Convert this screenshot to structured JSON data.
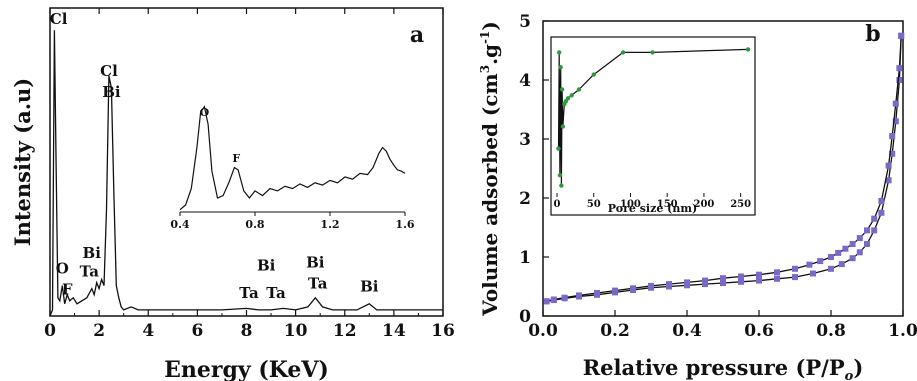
{
  "chart_data": [
    {
      "panel": "a",
      "type": "line",
      "xlabel": "Energy (KeV)",
      "ylabel": "Intensity (a.u)",
      "xlim": [
        0,
        16
      ],
      "xticks": [
        0,
        2,
        4,
        6,
        8,
        10,
        12,
        14,
        16
      ],
      "annotations": [
        {
          "text": "Cl",
          "x": 0.35,
          "y": 0.96
        },
        {
          "text": "Cl",
          "x": 2.4,
          "y": 0.79
        },
        {
          "text": "Bi",
          "x": 2.5,
          "y": 0.72
        },
        {
          "text": "O",
          "x": 0.5,
          "y": 0.14
        },
        {
          "text": "F",
          "x": 0.7,
          "y": 0.07
        },
        {
          "text": "Bi",
          "x": 1.7,
          "y": 0.19
        },
        {
          "text": "Ta",
          "x": 1.6,
          "y": 0.13
        },
        {
          "text": "Ta",
          "x": 8.1,
          "y": 0.06
        },
        {
          "text": "Bi",
          "x": 8.8,
          "y": 0.15
        },
        {
          "text": "Ta",
          "x": 9.2,
          "y": 0.06
        },
        {
          "text": "Bi",
          "x": 10.8,
          "y": 0.16
        },
        {
          "text": "Ta",
          "x": 10.9,
          "y": 0.09
        },
        {
          "text": "Bi",
          "x": 13.0,
          "y": 0.08
        }
      ],
      "series": [
        {
          "x": [
            0.0,
            0.1,
            0.18,
            0.25,
            0.32,
            0.4,
            0.5,
            0.6,
            0.7,
            0.8,
            0.95,
            1.1,
            1.3,
            1.5,
            1.7,
            1.8,
            1.9,
            2.0,
            2.1,
            2.2,
            2.3,
            2.4,
            2.5,
            2.6,
            2.7,
            2.8,
            2.9,
            3.0,
            3.3,
            3.6,
            4.0,
            5.0,
            6.0,
            7.0,
            8.0,
            8.5,
            9.0,
            9.5,
            10.0,
            10.5,
            10.8,
            11.1,
            11.5,
            12.0,
            12.5,
            13.0,
            13.3,
            14.0,
            15.0,
            16.0
          ],
          "y": [
            0.0,
            0.02,
            0.94,
            0.5,
            0.06,
            0.05,
            0.1,
            0.04,
            0.07,
            0.05,
            0.06,
            0.04,
            0.05,
            0.06,
            0.09,
            0.07,
            0.11,
            0.09,
            0.12,
            0.1,
            0.35,
            0.79,
            0.75,
            0.4,
            0.1,
            0.06,
            0.03,
            0.02,
            0.03,
            0.02,
            0.02,
            0.02,
            0.02,
            0.02,
            0.025,
            0.02,
            0.02,
            0.025,
            0.02,
            0.03,
            0.06,
            0.03,
            0.02,
            0.02,
            0.02,
            0.04,
            0.02,
            0.02,
            0.02,
            0.02
          ]
        }
      ],
      "inset": {
        "xlim": [
          0.4,
          1.6
        ],
        "xticks": [
          "0.4",
          "0.8",
          "1.2",
          "1.6"
        ],
        "annotations": [
          {
            "text": "O",
            "x": 0.53
          },
          {
            "text": "F",
            "x": 0.7
          }
        ],
        "x": [
          0.4,
          0.43,
          0.46,
          0.49,
          0.51,
          0.53,
          0.55,
          0.57,
          0.6,
          0.63,
          0.66,
          0.69,
          0.71,
          0.74,
          0.77,
          0.8,
          0.84,
          0.88,
          0.92,
          0.96,
          1.0,
          1.04,
          1.08,
          1.12,
          1.16,
          1.2,
          1.24,
          1.28,
          1.32,
          1.36,
          1.4,
          1.43,
          1.46,
          1.48,
          1.5,
          1.52,
          1.54,
          1.56,
          1.58,
          1.6
        ],
        "y": [
          0.02,
          0.06,
          0.2,
          0.55,
          0.85,
          0.9,
          0.75,
          0.35,
          0.12,
          0.14,
          0.25,
          0.38,
          0.36,
          0.18,
          0.12,
          0.18,
          0.14,
          0.2,
          0.18,
          0.22,
          0.2,
          0.24,
          0.21,
          0.25,
          0.23,
          0.27,
          0.25,
          0.3,
          0.28,
          0.33,
          0.32,
          0.38,
          0.5,
          0.55,
          0.52,
          0.45,
          0.4,
          0.36,
          0.35,
          0.33
        ]
      }
    },
    {
      "panel": "b",
      "type": "line",
      "xlabel": "Relative pressure (P/P",
      "xlabel_sub": "o",
      "xlabel_close": ")",
      "ylabel": "Volume adsorbed (cm",
      "ylabel_sup": "3",
      "ylabel_end": ".g",
      "ylabel_sup2": "-1",
      "ylabel_close": ")",
      "xlim": [
        0.0,
        1.0
      ],
      "ylim": [
        0,
        5
      ],
      "xticks": [
        "0.0",
        "0.2",
        "0.4",
        "0.6",
        "0.8",
        "1.0"
      ],
      "yticks": [
        "0",
        "1",
        "2",
        "3",
        "4",
        "5"
      ],
      "marker_color": "#7b68c8",
      "series": [
        {
          "x": [
            0.01,
            0.03,
            0.06,
            0.1,
            0.15,
            0.2,
            0.25,
            0.3,
            0.35,
            0.4,
            0.45,
            0.5,
            0.55,
            0.6,
            0.65,
            0.7,
            0.75,
            0.8,
            0.83,
            0.86,
            0.88,
            0.9,
            0.92,
            0.94,
            0.96,
            0.97,
            0.98,
            0.99,
            0.995
          ],
          "y": [
            0.25,
            0.27,
            0.3,
            0.33,
            0.36,
            0.4,
            0.44,
            0.48,
            0.5,
            0.52,
            0.54,
            0.56,
            0.58,
            0.6,
            0.63,
            0.66,
            0.72,
            0.8,
            0.88,
            0.98,
            1.08,
            1.22,
            1.45,
            1.75,
            2.3,
            2.75,
            3.3,
            4.0,
            4.75
          ]
        },
        {
          "x": [
            0.995,
            0.99,
            0.98,
            0.97,
            0.96,
            0.94,
            0.92,
            0.9,
            0.88,
            0.86,
            0.84,
            0.82,
            0.8,
            0.77,
            0.74,
            0.7,
            0.65,
            0.6,
            0.55,
            0.5,
            0.45,
            0.4,
            0.35,
            0.3,
            0.25,
            0.2,
            0.15,
            0.1,
            0.06,
            0.03,
            0.01
          ],
          "y": [
            4.75,
            4.2,
            3.6,
            3.05,
            2.55,
            1.95,
            1.65,
            1.45,
            1.32,
            1.22,
            1.14,
            1.07,
            1.0,
            0.93,
            0.87,
            0.8,
            0.74,
            0.7,
            0.67,
            0.64,
            0.6,
            0.57,
            0.54,
            0.51,
            0.47,
            0.43,
            0.39,
            0.35,
            0.31,
            0.28,
            0.25
          ]
        }
      ],
      "inset": {
        "xlabel": "Pore size (nm)",
        "xlim": [
          0,
          260
        ],
        "xticks": [
          "0",
          "50",
          "100",
          "150",
          "200",
          "250"
        ],
        "line_color": "#111111",
        "marker_color": "#2e9a3e",
        "x": [
          2,
          3,
          4,
          5,
          6,
          7,
          8,
          10,
          12,
          15,
          20,
          30,
          50,
          90,
          130,
          260
        ],
        "y": [
          0.3,
          0.95,
          0.12,
          0.85,
          0.05,
          0.7,
          0.45,
          0.6,
          0.62,
          0.64,
          0.66,
          0.7,
          0.8,
          0.95,
          0.95,
          0.97
        ]
      }
    }
  ]
}
